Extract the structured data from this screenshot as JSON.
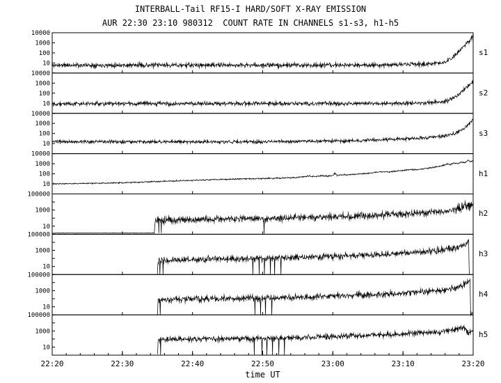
{
  "colors": {
    "background": "#ffffff",
    "line": "#000000"
  },
  "chart_data": {
    "type": "line",
    "title": "INTERBALL-Tail RF15-I HARD/SOFT X-RAY EMISSION",
    "subtitle": "AUR 22:30 23:10 980312  COUNT RATE IN CHANNELS s1-s3, h1-h5",
    "xlabel": "time UT",
    "y_scale": "log",
    "x_range_minutes": [
      0,
      60
    ],
    "x_ticks": [
      [
        0,
        "22:20"
      ],
      [
        10,
        "22:30"
      ],
      [
        20,
        "22:40"
      ],
      [
        30,
        "22:50"
      ],
      [
        40,
        "23:00"
      ],
      [
        50,
        "23:10"
      ],
      [
        60,
        "23:20"
      ]
    ],
    "x_minor_tick_step": 2,
    "panels": [
      {
        "label": "s1",
        "ylim": [
          1,
          10000
        ],
        "yticks": [
          [
            10,
            "10"
          ],
          [
            100,
            "100"
          ],
          [
            1000,
            "1000"
          ],
          [
            10000,
            "10000"
          ]
        ],
        "noise_dex": 0.16,
        "seed": 11,
        "start": 0,
        "end": 60,
        "trend": [
          [
            0,
            6
          ],
          [
            44,
            6
          ],
          [
            50,
            7
          ],
          [
            54,
            8
          ],
          [
            56,
            12
          ],
          [
            57,
            30
          ],
          [
            57.8,
            100
          ],
          [
            58.6,
            400
          ],
          [
            59.3,
            1200
          ],
          [
            60,
            5000
          ]
        ],
        "spikes": [],
        "noise_regions": []
      },
      {
        "label": "s2",
        "ylim": [
          1,
          10000
        ],
        "yticks": [
          [
            10,
            "10"
          ],
          [
            100,
            "100"
          ],
          [
            1000,
            "1000"
          ],
          [
            10000,
            "10000"
          ]
        ],
        "noise_dex": 0.14,
        "seed": 22,
        "start": 0,
        "end": 60,
        "trend": [
          [
            0,
            9
          ],
          [
            48,
            9.5
          ],
          [
            53,
            11
          ],
          [
            56,
            15
          ],
          [
            57,
            30
          ],
          [
            58,
            80
          ],
          [
            58.8,
            250
          ],
          [
            59.5,
            700
          ],
          [
            60,
            1600
          ]
        ],
        "spikes": [],
        "noise_regions": []
      },
      {
        "label": "s3",
        "ylim": [
          1,
          10000
        ],
        "yticks": [
          [
            10,
            "10"
          ],
          [
            100,
            "100"
          ],
          [
            1000,
            "1000"
          ],
          [
            10000,
            "10000"
          ]
        ],
        "noise_dex": 0.12,
        "seed": 33,
        "start": 0,
        "end": 60,
        "trend": [
          [
            0,
            15
          ],
          [
            30,
            15
          ],
          [
            40,
            18
          ],
          [
            46,
            22
          ],
          [
            50,
            28
          ],
          [
            54,
            40
          ],
          [
            56,
            60
          ],
          [
            57.5,
            110
          ],
          [
            58.5,
            250
          ],
          [
            59.3,
            700
          ],
          [
            60,
            2600
          ]
        ],
        "spikes": [],
        "noise_regions": []
      },
      {
        "label": "h1",
        "ylim": [
          1,
          10000
        ],
        "yticks": [
          [
            10,
            "10"
          ],
          [
            100,
            "100"
          ],
          [
            1000,
            "1000"
          ],
          [
            10000,
            "10000"
          ]
        ],
        "noise_dex": 0.05,
        "seed": 44,
        "start": 0,
        "end": 60,
        "trend": [
          [
            0,
            10
          ],
          [
            5,
            11
          ],
          [
            10,
            13
          ],
          [
            14,
            16
          ],
          [
            18,
            20
          ],
          [
            22,
            25
          ],
          [
            26,
            30
          ],
          [
            30,
            34
          ],
          [
            33,
            38
          ],
          [
            35,
            44
          ],
          [
            36.5,
            60
          ],
          [
            37.5,
            55
          ],
          [
            38.5,
            65
          ],
          [
            39.5,
            60
          ],
          [
            40,
            70
          ],
          [
            40.3,
            110
          ],
          [
            40.6,
            70
          ],
          [
            42,
            80
          ],
          [
            43.5,
            95
          ],
          [
            45,
            110
          ],
          [
            46,
            140
          ],
          [
            47,
            160
          ],
          [
            48,
            150
          ],
          [
            49,
            180
          ],
          [
            50,
            210
          ],
          [
            51,
            260
          ],
          [
            52,
            250
          ],
          [
            53,
            320
          ],
          [
            54,
            400
          ],
          [
            55,
            520
          ],
          [
            55.8,
            700
          ],
          [
            56.3,
            950
          ],
          [
            56.8,
            800
          ],
          [
            57.3,
            1200
          ],
          [
            57.8,
            1000
          ],
          [
            58.3,
            1500
          ],
          [
            58.8,
            1200
          ],
          [
            59.3,
            2100
          ],
          [
            59.7,
            1600
          ],
          [
            60,
            1900
          ]
        ],
        "spikes": [],
        "noise_regions": []
      },
      {
        "label": "h2",
        "ylim": [
          1,
          100000
        ],
        "yticks": [
          [
            10,
            "10"
          ],
          [
            1000,
            "1000"
          ],
          [
            100000,
            "100000"
          ]
        ],
        "noise_dex": 0.3,
        "seed": 55,
        "start": 0,
        "end": 60,
        "trend": [
          [
            0,
            1.4
          ],
          [
            14.55,
            1.4
          ],
          [
            14.7,
            55
          ],
          [
            20,
            65
          ],
          [
            25,
            75
          ],
          [
            30,
            85
          ],
          [
            35,
            105
          ],
          [
            40,
            135
          ],
          [
            44,
            185
          ],
          [
            48,
            260
          ],
          [
            51,
            350
          ],
          [
            54,
            500
          ],
          [
            56,
            700
          ],
          [
            57,
            900
          ],
          [
            57.6,
            1400
          ],
          [
            58,
            2400
          ],
          [
            58.4,
            1900
          ],
          [
            58.8,
            3200
          ],
          [
            59.2,
            2600
          ],
          [
            59.6,
            3800
          ],
          [
            60,
            2800
          ]
        ],
        "spikes": [
          [
            15.2,
            1.4
          ],
          [
            15.55,
            1.4
          ],
          [
            30.2,
            1.2
          ]
        ],
        "noise_regions": [
          [
            0,
            14.6,
            0.02
          ],
          [
            57.4,
            59.8,
            0.5
          ]
        ]
      },
      {
        "label": "h3",
        "ylim": [
          1,
          100000
        ],
        "yticks": [
          [
            10,
            "10"
          ],
          [
            1000,
            "1000"
          ],
          [
            100000,
            "100000"
          ]
        ],
        "noise_dex": 0.28,
        "seed": 66,
        "start": 15,
        "end": 59.45,
        "trend": [
          [
            15,
            1
          ],
          [
            15.1,
            60
          ],
          [
            20,
            75
          ],
          [
            25,
            85
          ],
          [
            30,
            100
          ],
          [
            35,
            130
          ],
          [
            40,
            180
          ],
          [
            44,
            250
          ],
          [
            48,
            350
          ],
          [
            51,
            500
          ],
          [
            54,
            750
          ],
          [
            56,
            1200
          ],
          [
            57,
            1700
          ],
          [
            58,
            2600
          ],
          [
            58.7,
            4500
          ],
          [
            59.1,
            8000
          ],
          [
            59.35,
            12000
          ],
          [
            59.45,
            1
          ]
        ],
        "spikes": [
          [
            15.35,
            1
          ],
          [
            15.8,
            1
          ],
          [
            28.6,
            1
          ],
          [
            29.5,
            1
          ],
          [
            30.25,
            1
          ],
          [
            31.1,
            1
          ],
          [
            31.7,
            1
          ],
          [
            32.6,
            1
          ]
        ],
        "noise_regions": []
      },
      {
        "label": "h4",
        "ylim": [
          1,
          100000
        ],
        "yticks": [
          [
            10,
            "10"
          ],
          [
            1000,
            "1000"
          ],
          [
            100000,
            "100000"
          ]
        ],
        "noise_dex": 0.28,
        "seed": 77,
        "start": 15,
        "end": 59.9,
        "trend": [
          [
            15,
            1
          ],
          [
            15.1,
            80
          ],
          [
            20,
            92
          ],
          [
            25,
            102
          ],
          [
            30,
            112
          ],
          [
            35,
            145
          ],
          [
            40,
            205
          ],
          [
            44,
            285
          ],
          [
            48,
            390
          ],
          [
            51,
            560
          ],
          [
            54,
            820
          ],
          [
            56,
            1250
          ],
          [
            57,
            1900
          ],
          [
            58,
            3100
          ],
          [
            58.7,
            6000
          ],
          [
            59.2,
            10000
          ],
          [
            59.55,
            14000
          ],
          [
            59.65,
            1
          ],
          [
            59.9,
            1.3
          ]
        ],
        "spikes": [
          [
            15.4,
            1
          ],
          [
            28.9,
            1
          ],
          [
            29.7,
            1
          ],
          [
            30.4,
            1
          ],
          [
            31.3,
            1
          ]
        ],
        "noise_regions": []
      },
      {
        "label": "h5",
        "ylim": [
          1,
          100000
        ],
        "yticks": [
          [
            10,
            "10"
          ],
          [
            1000,
            "1000"
          ],
          [
            100000,
            "100000"
          ]
        ],
        "noise_dex": 0.24,
        "seed": 88,
        "start": 15,
        "end": 60,
        "trend": [
          [
            15,
            1
          ],
          [
            15.1,
            90
          ],
          [
            20,
            100
          ],
          [
            25,
            110
          ],
          [
            30,
            120
          ],
          [
            35,
            155
          ],
          [
            40,
            205
          ],
          [
            44,
            265
          ],
          [
            48,
            355
          ],
          [
            51,
            480
          ],
          [
            54,
            660
          ],
          [
            56,
            920
          ],
          [
            57,
            1350
          ],
          [
            57.8,
            2100
          ],
          [
            58.4,
            2900
          ],
          [
            58.9,
            2300
          ],
          [
            59.15,
            800
          ],
          [
            59.35,
            420
          ],
          [
            59.6,
            900
          ],
          [
            60,
            1400
          ]
        ],
        "spikes": [
          [
            15.45,
            1
          ],
          [
            28.8,
            1
          ],
          [
            29.9,
            1
          ],
          [
            30.6,
            1
          ],
          [
            31.4,
            1
          ],
          [
            32.3,
            1
          ],
          [
            33.1,
            1
          ]
        ],
        "noise_regions": []
      }
    ]
  }
}
